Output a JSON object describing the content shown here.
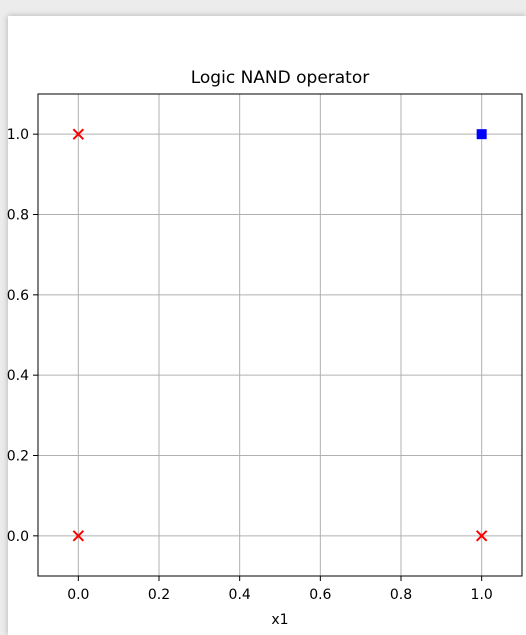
{
  "chart_data": {
    "type": "scatter",
    "title": "Logic NAND operator",
    "xlabel": "x1",
    "series": [
      {
        "color": "#ff0000",
        "marker": "x",
        "x": [
          0,
          0,
          1
        ],
        "y": [
          0,
          1,
          0
        ]
      },
      {
        "color": "#0000ff",
        "marker": "square",
        "x": [
          1
        ],
        "y": [
          1
        ]
      }
    ],
    "xlim": [
      -0.1,
      1.1
    ],
    "ylim": [
      -0.1,
      1.1
    ],
    "xticks": [
      {
        "value": 0,
        "label": "0.0"
      },
      {
        "value": 0.2,
        "label": "0.2"
      },
      {
        "value": 0.4,
        "label": "0.4"
      },
      {
        "value": 0.6,
        "label": "0.6"
      },
      {
        "value": 0.8,
        "label": "0.8"
      },
      {
        "value": 1,
        "label": "1.0"
      }
    ],
    "yticks": [
      {
        "value": 0,
        "label": "0.0"
      },
      {
        "value": 0.2,
        "label": "0.2"
      },
      {
        "value": 0.4,
        "label": "0.4"
      },
      {
        "value": 0.6,
        "label": "0.6"
      },
      {
        "value": 0.8,
        "label": "0.8"
      },
      {
        "value": 1,
        "label": "1.0"
      }
    ],
    "grid": true
  }
}
